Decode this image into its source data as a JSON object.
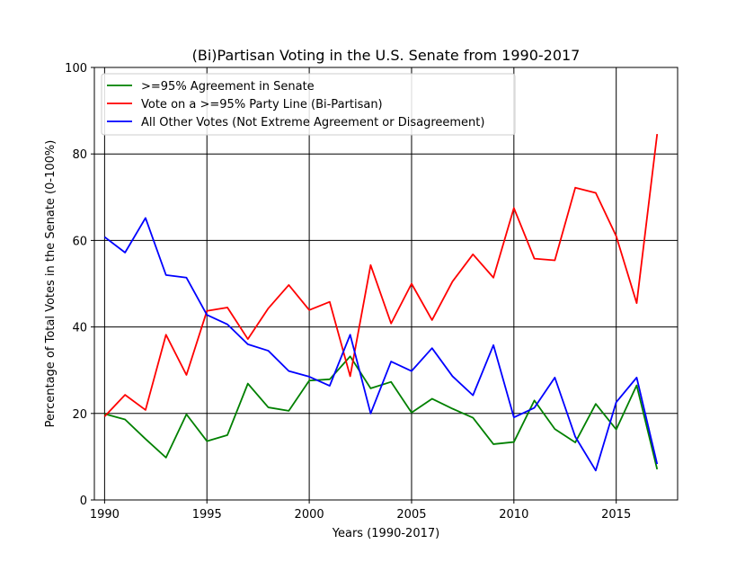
{
  "chart_data": {
    "type": "line",
    "title": "(Bi)Partisan Voting in the U.S. Senate from 1990-2017",
    "xlabel": "Years (1990-2017)",
    "ylabel": "Percentage of Total Votes in the Senate (0-100%)",
    "xlim": [
      1989.5,
      2018.0
    ],
    "ylim": [
      0,
      100
    ],
    "xticks": [
      1990,
      1995,
      2000,
      2005,
      2010,
      2015
    ],
    "yticks": [
      0,
      20,
      40,
      60,
      80,
      100
    ],
    "grid": true,
    "legend_position": "top-left",
    "x": [
      1990,
      1991,
      1992,
      1993,
      1994,
      1995,
      1996,
      1997,
      1998,
      1999,
      2000,
      2001,
      2002,
      2003,
      2004,
      2005,
      2006,
      2007,
      2008,
      2009,
      2010,
      2011,
      2012,
      2013,
      2014,
      2015,
      2016,
      2017
    ],
    "series": [
      {
        "name": ">=95% Agreement in Senate",
        "color": "#008000",
        "values": [
          19.9,
          18.6,
          14.1,
          9.8,
          19.8,
          13.6,
          15.0,
          26.9,
          21.4,
          20.6,
          27.6,
          27.9,
          33.2,
          25.8,
          27.3,
          20.2,
          23.4,
          21.1,
          19.0,
          12.9,
          13.4,
          23.0,
          16.4,
          13.3,
          22.2,
          16.3,
          26.5,
          7.1
        ]
      },
      {
        "name": "Vote on a >=95% Party Line (Bi-Partisan)",
        "color": "#ff0000",
        "values": [
          19.3,
          24.3,
          20.8,
          38.2,
          28.9,
          43.7,
          44.5,
          37.2,
          44.3,
          49.7,
          43.9,
          45.8,
          28.6,
          54.3,
          40.8,
          50.0,
          41.6,
          50.5,
          56.8,
          51.4,
          67.5,
          55.8,
          55.4,
          72.2,
          71.0,
          61.0,
          45.5,
          84.6
        ]
      },
      {
        "name": "All Other Votes (Not Extreme Agreement or Disagreement)",
        "color": "#0000ff",
        "values": [
          60.8,
          57.2,
          65.2,
          52.0,
          51.4,
          42.8,
          40.6,
          36.0,
          34.5,
          29.8,
          28.5,
          26.4,
          38.2,
          20.0,
          32.0,
          29.8,
          35.1,
          28.6,
          24.2,
          35.8,
          19.1,
          21.3,
          28.3,
          14.6,
          6.8,
          22.6,
          28.3,
          8.3
        ]
      }
    ]
  }
}
